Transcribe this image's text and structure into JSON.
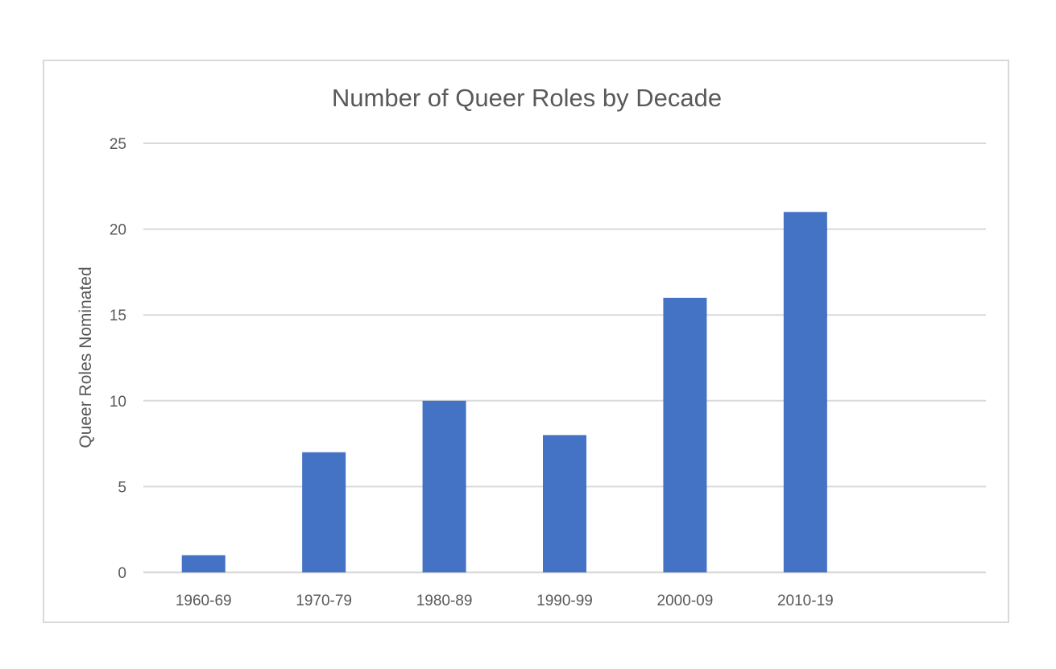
{
  "chart_data": {
    "type": "bar",
    "title": "Number of Queer Roles by Decade",
    "xlabel": "",
    "ylabel": "Queer Roles Nominated",
    "categories": [
      "1960-69",
      "1970-79",
      "1980-89",
      "1990-99",
      "2000-09",
      "2010-19"
    ],
    "values": [
      1,
      7,
      10,
      8,
      16,
      21
    ],
    "ylim": [
      0,
      25
    ],
    "yticks": [
      "0",
      "5",
      "10",
      "15",
      "20",
      "25"
    ],
    "grid": true,
    "legend": "none",
    "bar_color": "#4472C4",
    "grid_color": "#d9d9d9",
    "text_color": "#595959"
  }
}
